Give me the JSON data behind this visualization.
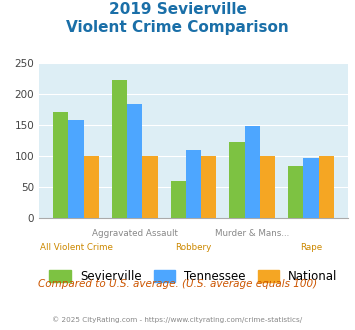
{
  "title_line1": "2019 Sevierville",
  "title_line2": "Violent Crime Comparison",
  "categories": [
    "All Violent Crime",
    "Aggravated Assault",
    "Robbery",
    "Murder & Mans...",
    "Rape"
  ],
  "sevierville": [
    170,
    222,
    60,
    122,
    83
  ],
  "tennessee": [
    158,
    183,
    110,
    148,
    97
  ],
  "national": [
    100,
    100,
    100,
    100,
    100
  ],
  "colors": {
    "sevierville": "#7dc242",
    "tennessee": "#4da6ff",
    "national": "#f5a623"
  },
  "ylim": [
    0,
    250
  ],
  "yticks": [
    0,
    50,
    100,
    150,
    200,
    250
  ],
  "title_color": "#1a6fa8",
  "background_chart": "#ddeef5",
  "footer_text": "Compared to U.S. average. (U.S. average equals 100)",
  "footer_color": "#cc5500",
  "copyright_text": "© 2025 CityRating.com - https://www.cityrating.com/crime-statistics/",
  "copyright_color": "#888888",
  "legend_labels": [
    "Sevierville",
    "Tennessee",
    "National"
  ],
  "label_top": [
    "",
    "Aggravated Assault",
    "",
    "Murder & Mans...",
    ""
  ],
  "label_bottom": [
    "All Violent Crime",
    "",
    "Robbery",
    "",
    "Rape"
  ],
  "label_top_color": "#888888",
  "label_bottom_color": "#cc8800"
}
